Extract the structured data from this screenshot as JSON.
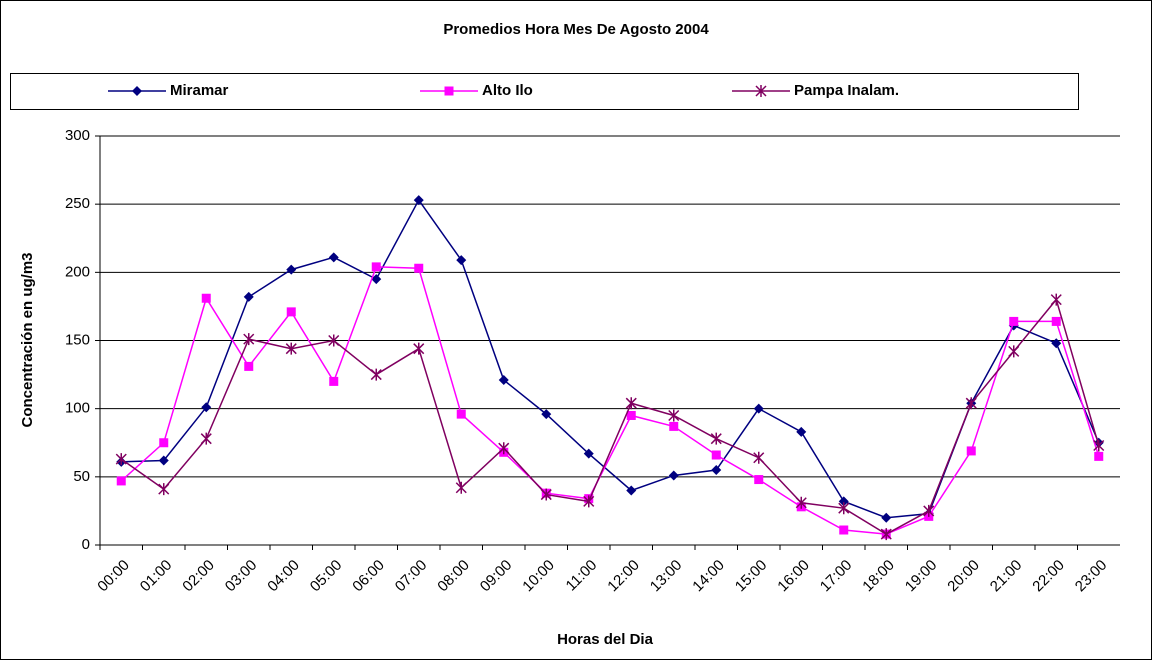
{
  "chart_data": {
    "type": "line",
    "title": "Promedios Hora Mes De Agosto 2004",
    "x_label": "Horas del Dia",
    "y_label": "Concentración en ug/m3",
    "categories": [
      "00:00",
      "01:00",
      "02:00",
      "03:00",
      "04:00",
      "05:00",
      "06:00",
      "07:00",
      "08:00",
      "09:00",
      "10:00",
      "11:00",
      "12:00",
      "13:00",
      "14:00",
      "15:00",
      "16:00",
      "17:00",
      "18:00",
      "19:00",
      "20:00",
      "21:00",
      "22:00",
      "23:00"
    ],
    "series": [
      {
        "name": "Miramar",
        "color": "#000080",
        "marker": "diamond",
        "values": [
          61,
          62,
          101,
          182,
          202,
          211,
          195,
          253,
          209,
          121,
          96,
          67,
          40,
          51,
          55,
          100,
          83,
          32,
          20,
          23,
          104,
          161,
          148,
          75
        ]
      },
      {
        "name": "Alto Ilo",
        "color": "#ff00ff",
        "marker": "square",
        "values": [
          47,
          75,
          181,
          131,
          171,
          120,
          204,
          203,
          96,
          68,
          38,
          34,
          95,
          87,
          66,
          48,
          28,
          11,
          8,
          21,
          69,
          164,
          164,
          65
        ]
      },
      {
        "name": "Pampa Inalam.",
        "color": "#800060",
        "marker": "star",
        "values": [
          63,
          41,
          78,
          151,
          144,
          150,
          125,
          144,
          42,
          71,
          37,
          32,
          104,
          95,
          78,
          64,
          31,
          27,
          8,
          25,
          104,
          142,
          180,
          73
        ]
      }
    ],
    "ylim": [
      0,
      300
    ],
    "yticks": [
      0,
      50,
      100,
      150,
      200,
      250,
      300
    ],
    "grid": true,
    "legend": "top"
  }
}
